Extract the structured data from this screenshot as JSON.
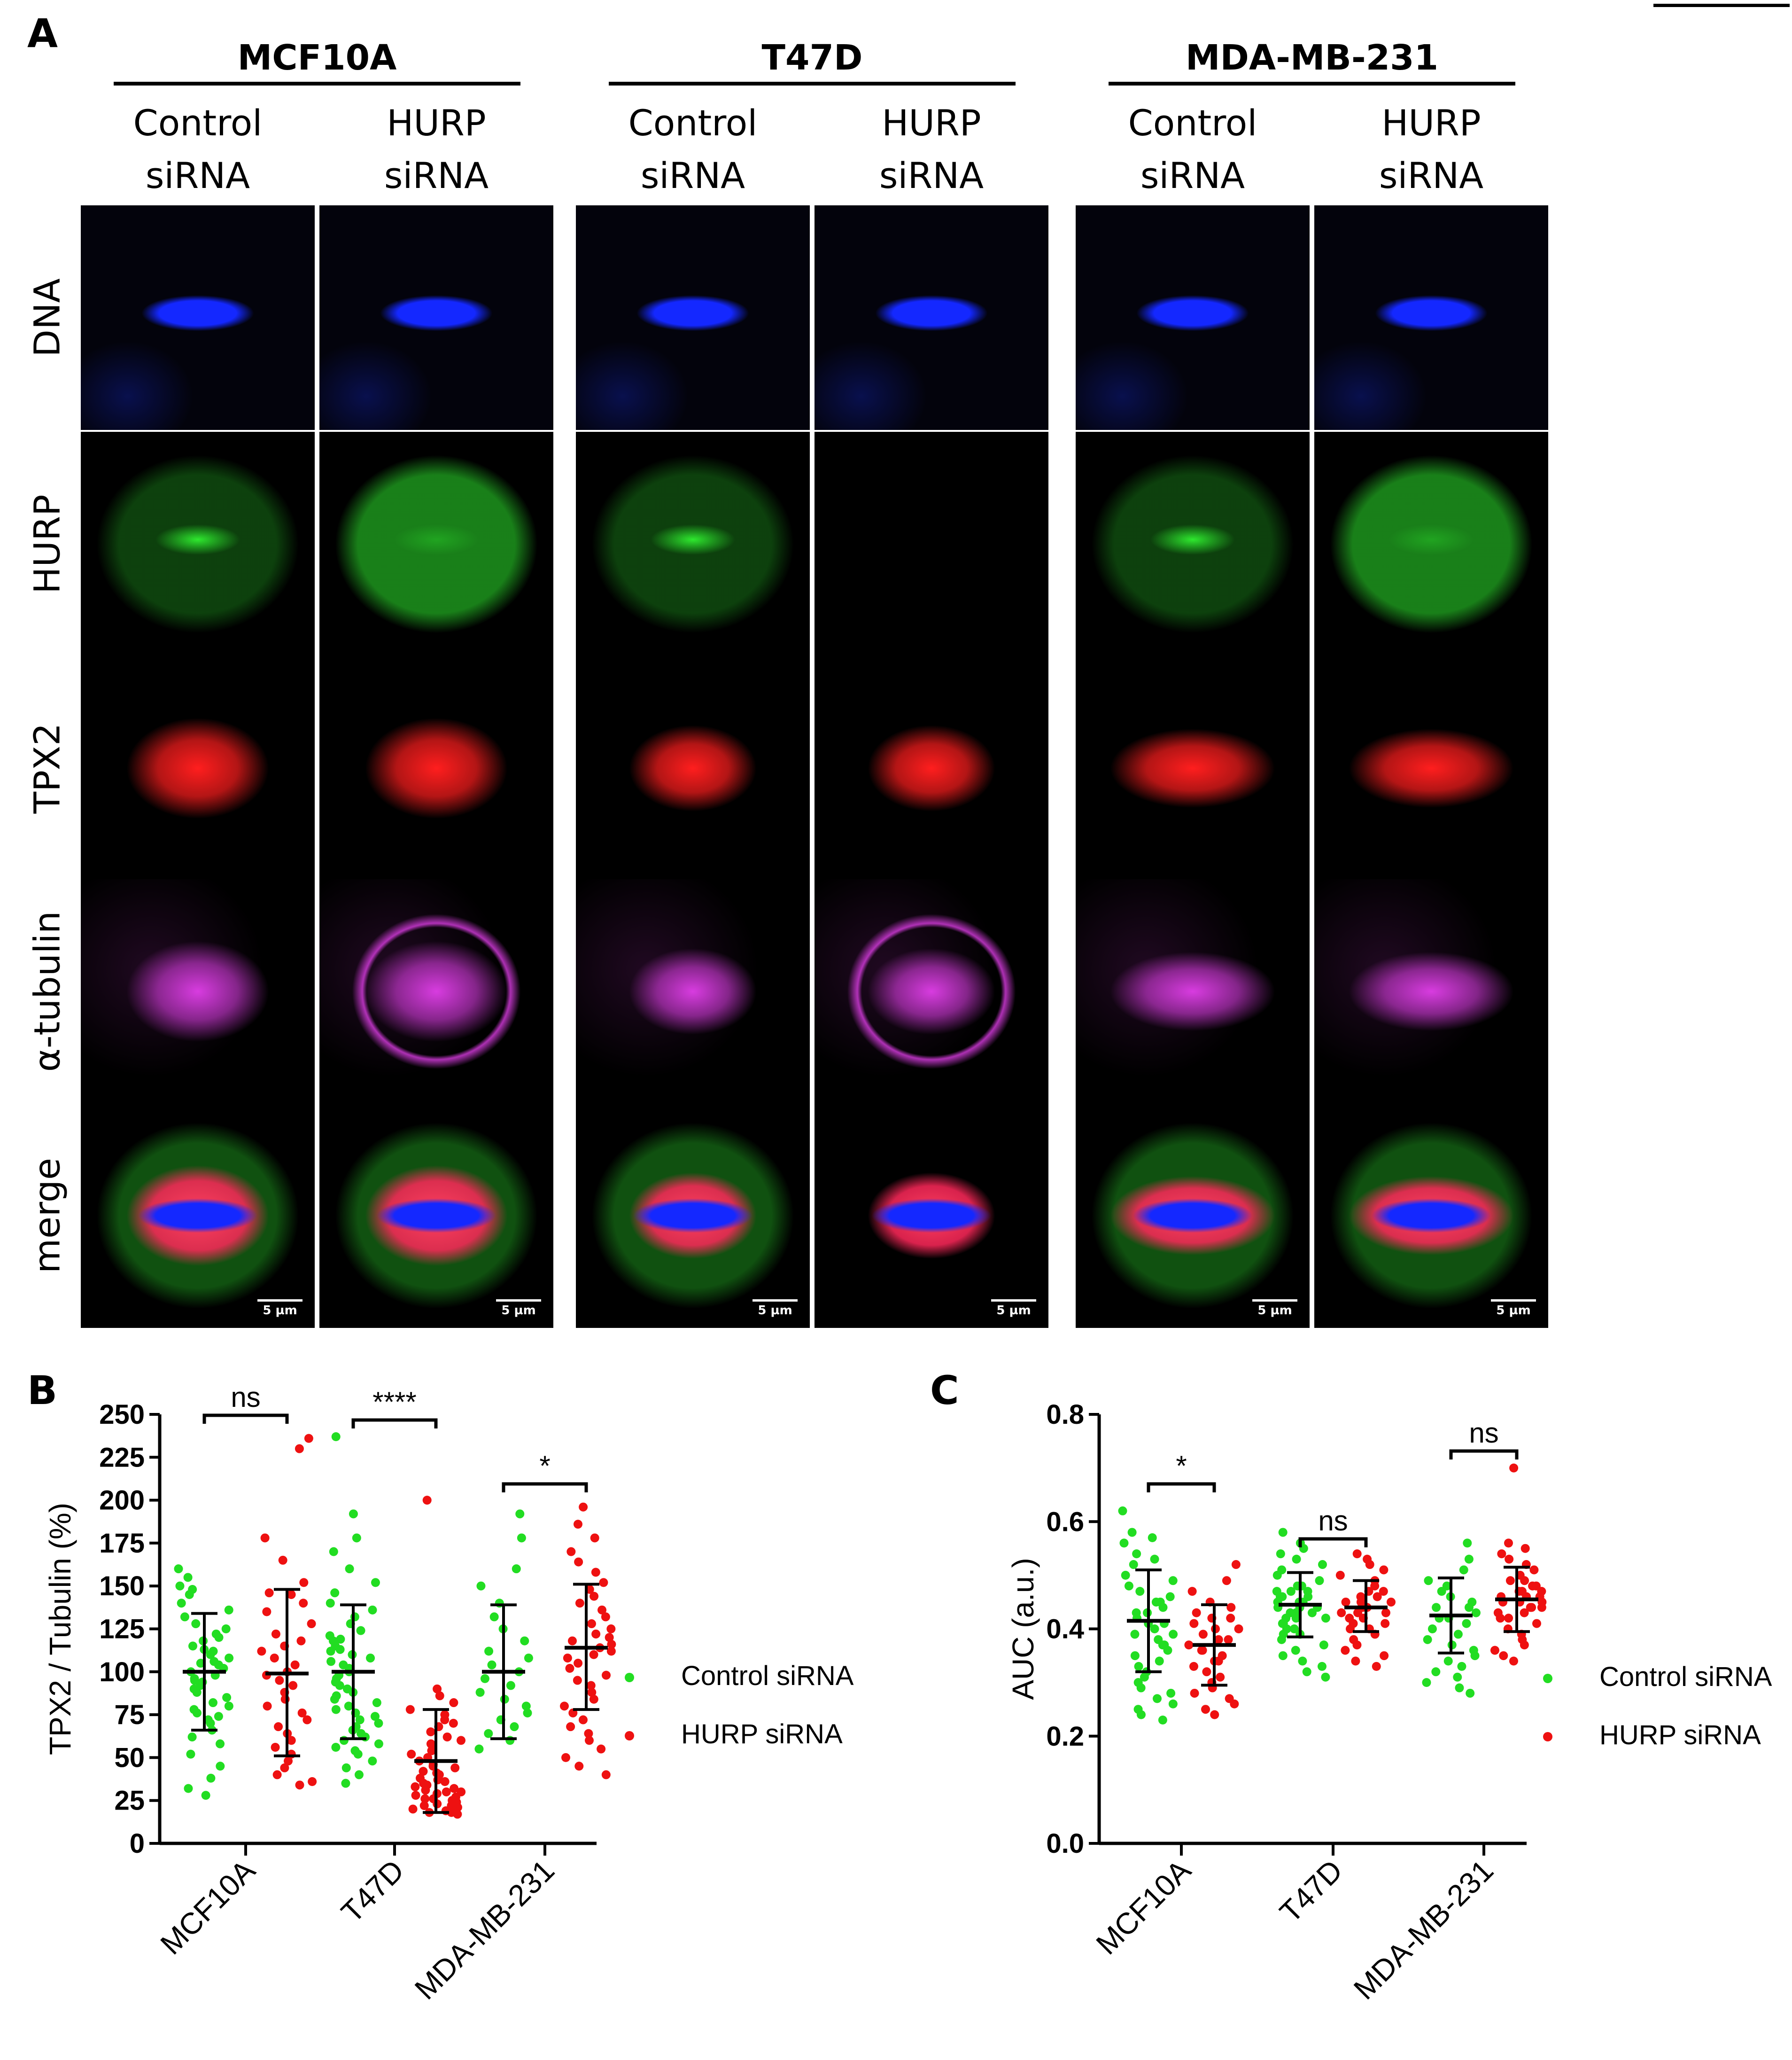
{
  "panel_labels": {
    "a": "A",
    "b": "B",
    "c": "C"
  },
  "microscopy": {
    "cell_lines": [
      {
        "name": "MCF10A",
        "conditions": [
          {
            "line1": "Control",
            "line2": "siRNA"
          },
          {
            "line1": "HURP",
            "line2": "siRNA"
          }
        ]
      },
      {
        "name": "T47D",
        "conditions": [
          {
            "line1": "Control",
            "line2": "siRNA"
          },
          {
            "line1": "HURP",
            "line2": "siRNA"
          }
        ]
      },
      {
        "name": "MDA-MB-231",
        "conditions": [
          {
            "line1": "Control",
            "line2": "siRNA"
          },
          {
            "line1": "HURP",
            "line2": "siRNA"
          }
        ]
      }
    ],
    "channels": [
      "DNA",
      "HURP",
      "TPX2",
      "α-tubulin",
      "merge"
    ],
    "channel_colors": {
      "DNA": "#1428ff",
      "HURP": "#2ee82e",
      "TPX2": "#ff1e1e",
      "α-tubulin": "#d83ce0"
    },
    "scale_bar": "5 µm"
  },
  "chart_data": [
    {
      "type": "scatter",
      "panel": "B",
      "ylabel": "TPX2 / Tubulin (%)",
      "xlabel": "",
      "categories": [
        "MCF10A",
        "T47D",
        "MDA-MB-231"
      ],
      "ylim": [
        0,
        250
      ],
      "yticks": [
        0,
        25,
        50,
        75,
        100,
        125,
        150,
        175,
        200,
        225,
        250
      ],
      "legend": "right",
      "series": [
        {
          "name": "Control siRNA",
          "color": "#22dd22",
          "mean": [
            100,
            100,
            100
          ],
          "sd_low": [
            66,
            61,
            61
          ],
          "sd_high": [
            134,
            139,
            139
          ],
          "points": [
            [
              160,
              155,
              150,
              148,
              145,
              140,
              136,
              132,
              128,
              125,
              122,
              120,
              118,
              115,
              113,
              110,
              108,
              106,
              104,
              102,
              100,
              98,
              96,
              94,
              92,
              90,
              88,
              85,
              82,
              80,
              78,
              76,
              74,
              72,
              70,
              66,
              62,
              58,
              52,
              45,
              38,
              32,
              28,
              105,
              112,
              95
            ],
            [
              237,
              192,
              178,
              170,
              160,
              152,
              146,
              140,
              136,
              132,
              128,
              124,
              121,
              118,
              115,
              112,
              110,
              108,
              106,
              104,
              102,
              100,
              98,
              96,
              94,
              92,
              90,
              88,
              86,
              84,
              82,
              80,
              78,
              76,
              74,
              72,
              70,
              68,
              66,
              64,
              62,
              60,
              58,
              56,
              54,
              52,
              48,
              44,
              40,
              35,
              119,
              113
            ],
            [
              192,
              178,
              160,
              150,
              140,
              132,
              125,
              118,
              112,
              108,
              104,
              100,
              96,
              92,
              88,
              84,
              80,
              76,
              72,
              68,
              64,
              60,
              55
            ]
          ]
        },
        {
          "name": "HURP siRNA",
          "color": "#ee1111",
          "mean": [
            99,
            48,
            114
          ],
          "sd_low": [
            51,
            18,
            78
          ],
          "sd_high": [
            148,
            78,
            151
          ],
          "points": [
            [
              236,
              230,
              178,
              165,
              152,
              146,
              140,
              135,
              128,
              122,
              118,
              112,
              108,
              104,
              100,
              98,
              95,
              92,
              88,
              84,
              80,
              76,
              72,
              68,
              64,
              60,
              56,
              52,
              48,
              44,
              40,
              36,
              34,
              145,
              115
            ],
            [
              200,
              90,
              86,
              82,
              78,
              75,
              72,
              70,
              68,
              65,
              62,
              60,
              58,
              56,
              54,
              52,
              50,
              48,
              46,
              44,
              42,
              40,
              38,
              36,
              35,
              34,
              33,
              32,
              31,
              30,
              29,
              28,
              27,
              26,
              25,
              24,
              23,
              22,
              21,
              20,
              19,
              18,
              18,
              17,
              45,
              41,
              37,
              30,
              26,
              22
            ],
            [
              196,
              186,
              178,
              170,
              164,
              158,
              152,
              148,
              144,
              140,
              136,
              132,
              128,
              125,
              122,
              120,
              118,
              116,
              114,
              112,
              110,
              108,
              105,
              102,
              98,
              95,
              92,
              88,
              84,
              80,
              76,
              72,
              68,
              64,
              60,
              55,
              50,
              45,
              40
            ]
          ]
        }
      ],
      "annotations": [
        {
          "between": "MCF10A",
          "text": "ns"
        },
        {
          "between": "T47D",
          "text": "****"
        },
        {
          "between": "MDA-MB-231",
          "text": "*"
        }
      ]
    },
    {
      "type": "scatter",
      "panel": "C",
      "ylabel": "AUC (a.u.)",
      "xlabel": "",
      "categories": [
        "MCF10A",
        "T47D",
        "MDA-MB-231"
      ],
      "ylim": [
        0,
        0.8
      ],
      "yticks": [
        "0.0",
        "0.2",
        "0.4",
        "0.6",
        "0.8"
      ],
      "legend": "right",
      "series": [
        {
          "name": "Control siRNA",
          "color": "#22dd22",
          "mean": [
            0.415,
            0.445,
            0.425
          ],
          "sd_low": [
            0.32,
            0.385,
            0.355
          ],
          "sd_high": [
            0.51,
            0.505,
            0.495
          ],
          "points": [
            [
              0.62,
              0.58,
              0.56,
              0.54,
              0.52,
              0.5,
              0.49,
              0.48,
              0.47,
              0.46,
              0.45,
              0.44,
              0.43,
              0.42,
              0.41,
              0.4,
              0.39,
              0.38,
              0.37,
              0.36,
              0.35,
              0.34,
              0.33,
              0.32,
              0.31,
              0.3,
              0.29,
              0.28,
              0.27,
              0.26,
              0.25,
              0.24,
              0.23,
              0.57,
              0.53,
              0.45,
              0.43,
              0.41,
              0.39,
              0.37
            ],
            [
              0.58,
              0.56,
              0.55,
              0.54,
              0.53,
              0.52,
              0.51,
              0.5,
              0.49,
              0.48,
              0.48,
              0.47,
              0.47,
              0.46,
              0.46,
              0.45,
              0.45,
              0.44,
              0.44,
              0.43,
              0.43,
              0.42,
              0.42,
              0.41,
              0.41,
              0.4,
              0.4,
              0.39,
              0.39,
              0.38,
              0.37,
              0.36,
              0.35,
              0.34,
              0.33,
              0.32,
              0.31,
              0.45,
              0.44,
              0.46,
              0.43,
              0.47,
              0.42
            ],
            [
              0.56,
              0.53,
              0.51,
              0.49,
              0.48,
              0.47,
              0.46,
              0.45,
              0.44,
              0.43,
              0.42,
              0.41,
              0.4,
              0.39,
              0.38,
              0.37,
              0.36,
              0.35,
              0.34,
              0.33,
              0.32,
              0.31,
              0.3,
              0.29,
              0.28,
              0.44,
              0.42
            ]
          ]
        },
        {
          "name": "HURP siRNA",
          "color": "#ee1111",
          "mean": [
            0.37,
            0.44,
            0.455
          ],
          "sd_low": [
            0.295,
            0.395,
            0.395
          ],
          "sd_high": [
            0.445,
            0.49,
            0.515
          ],
          "points": [
            [
              0.52,
              0.49,
              0.47,
              0.45,
              0.44,
              0.43,
              0.42,
              0.41,
              0.4,
              0.39,
              0.38,
              0.37,
              0.36,
              0.35,
              0.34,
              0.33,
              0.32,
              0.31,
              0.3,
              0.29,
              0.28,
              0.27,
              0.26,
              0.25,
              0.24,
              0.38,
              0.36,
              0.34,
              0.4,
              0.42
            ],
            [
              0.54,
              0.53,
              0.52,
              0.51,
              0.5,
              0.49,
              0.48,
              0.47,
              0.47,
              0.46,
              0.46,
              0.45,
              0.45,
              0.44,
              0.44,
              0.43,
              0.43,
              0.42,
              0.42,
              0.41,
              0.41,
              0.4,
              0.4,
              0.39,
              0.38,
              0.37,
              0.36,
              0.35,
              0.34,
              0.33,
              0.44,
              0.45,
              0.43
            ],
            [
              0.7,
              0.56,
              0.55,
              0.54,
              0.53,
              0.52,
              0.51,
              0.5,
              0.49,
              0.49,
              0.48,
              0.48,
              0.47,
              0.47,
              0.46,
              0.46,
              0.45,
              0.45,
              0.44,
              0.44,
              0.43,
              0.43,
              0.42,
              0.42,
              0.41,
              0.4,
              0.39,
              0.38,
              0.37,
              0.36,
              0.35,
              0.34,
              0.46,
              0.47,
              0.45,
              0.44
            ]
          ]
        }
      ],
      "annotations": [
        {
          "between": "MCF10A",
          "text": "*"
        },
        {
          "between": "T47D",
          "text": "ns"
        },
        {
          "between": "MDA-MB-231",
          "text": "ns"
        }
      ]
    }
  ]
}
